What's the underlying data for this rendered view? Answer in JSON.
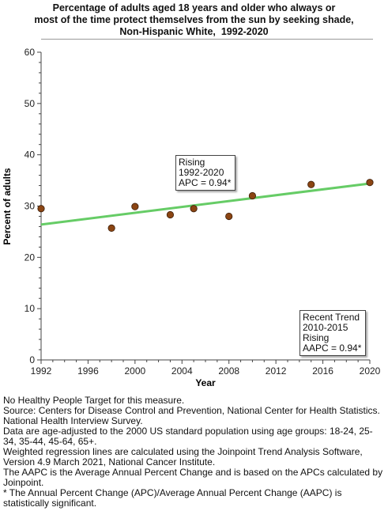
{
  "chart_data": {
    "type": "scatter",
    "title": [
      "Percentage of adults aged 18 years and older who always or",
      "most of the time protect themselves from the sun by seeking shade,",
      "Non-Hispanic White,  1992-2020"
    ],
    "xlabel": "Year",
    "ylabel": "Percent of adults",
    "xlim": [
      1992,
      2020
    ],
    "ylim": [
      0,
      60
    ],
    "xticks": [
      1992,
      1996,
      2000,
      2004,
      2008,
      2012,
      2016,
      2020
    ],
    "yticks": [
      0,
      10,
      20,
      30,
      40,
      50,
      60
    ],
    "grid": false,
    "series": [
      {
        "x": [
          1992,
          1998,
          2000,
          2003,
          2005,
          2008,
          2010,
          2015,
          2020
        ],
        "y": [
          29.5,
          25.7,
          29.9,
          28.3,
          29.5,
          28.0,
          32.0,
          34.2,
          34.6
        ],
        "color": "#8b4513"
      }
    ],
    "trend_line": {
      "x": [
        1992,
        2020
      ],
      "y": [
        26.4,
        34.4
      ],
      "color": "#66cc66"
    },
    "annotations": [
      {
        "lines": [
          "Rising",
          "1992-2020",
          "APC =  0.94*"
        ]
      },
      {
        "lines": [
          "Recent Trend",
          "2010-2015",
          "Rising",
          "AAPC =  0.94*"
        ]
      }
    ]
  },
  "notes": [
    "No Healthy People Target for this measure.",
    "Source: Centers for Disease Control and Prevention, National Center for Health Statistics. National Health Interview Survey.",
    "Data are age-adjusted to the 2000 US standard population using age groups: 18-24, 25-34, 35-44, 45-64, 65+.",
    "Weighted regression lines are calculated using the Joinpoint Trend Analysis Software, Version 4.9 March 2021, National Cancer Institute.",
    "The AAPC is the Average Annual Percent Change and is based on the APCs calculated by Joinpoint.",
    "* The Annual Percent Change (APC)/Average Annual Percent Change (AAPC) is statistically significant."
  ]
}
